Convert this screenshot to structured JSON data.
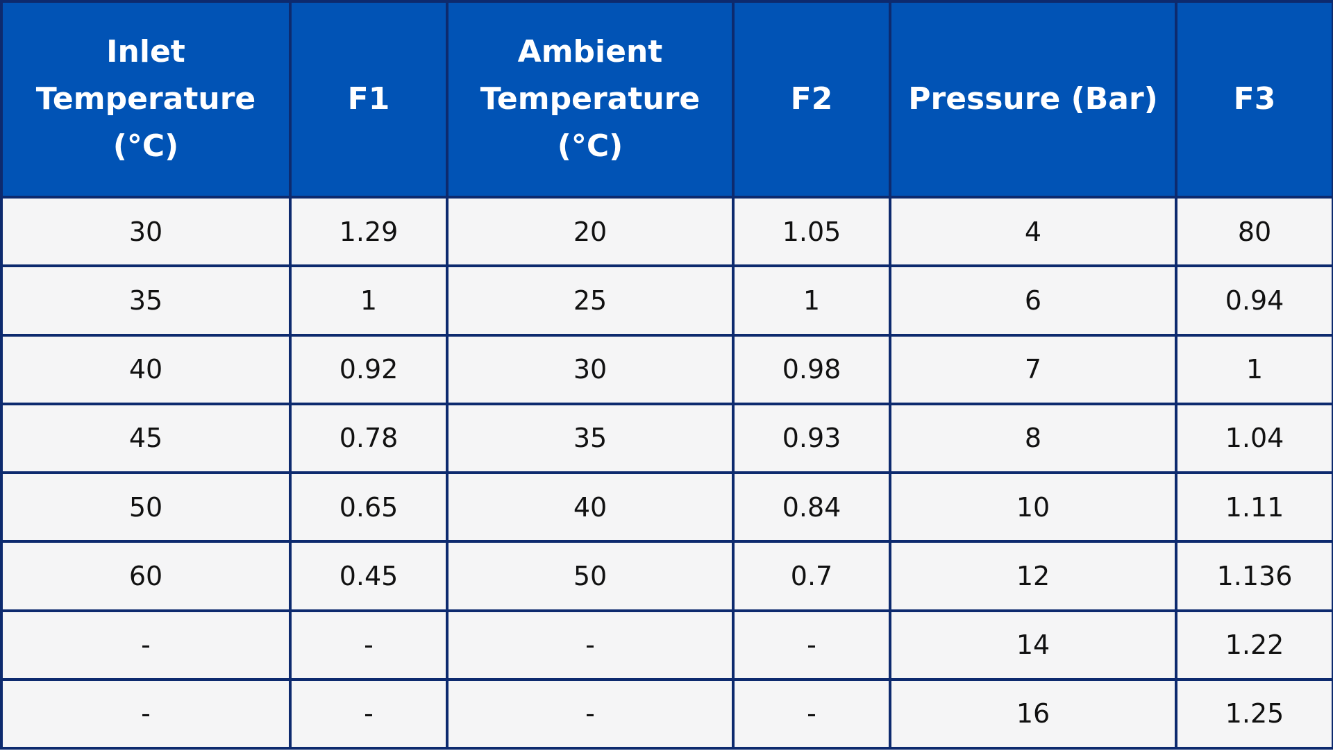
{
  "table": {
    "headers": [
      "Inlet Temperature (°C)",
      "F1",
      "Ambient Temperature (°C)",
      "F2",
      "Pressure (Bar)",
      "F3"
    ],
    "rows": [
      [
        "30",
        "1.29",
        "20",
        "1.05",
        "4",
        "80"
      ],
      [
        "35",
        "1",
        "25",
        "1",
        "6",
        "0.94"
      ],
      [
        "40",
        "0.92",
        "30",
        "0.98",
        "7",
        "1"
      ],
      [
        "45",
        "0.78",
        "35",
        "0.93",
        "8",
        "1.04"
      ],
      [
        "50",
        "0.65",
        "40",
        "0.84",
        "10",
        "1.11"
      ],
      [
        "60",
        "0.45",
        "50",
        "0.7",
        "12",
        "1.136"
      ],
      [
        "-",
        "-",
        "-",
        "-",
        "14",
        "1.22"
      ],
      [
        "-",
        "-",
        "-",
        "-",
        "16",
        "1.25"
      ]
    ]
  },
  "colors": {
    "header_background": "#0153b5",
    "header_text": "#ffffff",
    "border": "#0d2a6e",
    "cell_background": "#f5f5f6"
  }
}
